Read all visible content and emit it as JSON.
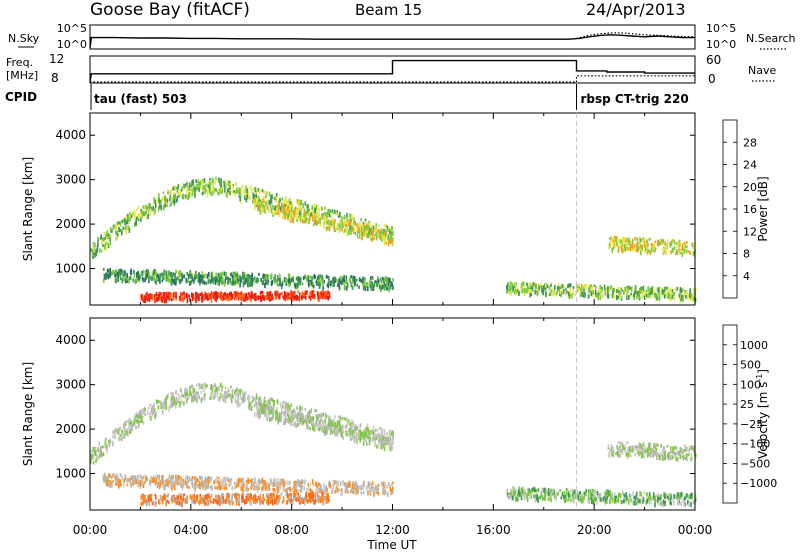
{
  "header": {
    "station": "Goose Bay (fitACF)",
    "beam": "Beam 15",
    "date": "24/Apr/2013"
  },
  "chart_data": [
    {
      "type": "line",
      "name": "noise-panel",
      "left_label": "N.Sky",
      "right_label": "N.Search",
      "left_ticks": [
        "10^5",
        "10^0"
      ],
      "right_ticks": [
        "10^5",
        "10^0"
      ],
      "series": [
        {
          "name": "N.Sky",
          "style": "solid",
          "x": [
            0,
            0.05,
            0.3,
            1,
            2,
            3,
            4,
            5,
            6,
            7,
            8,
            9,
            10,
            11,
            12,
            13,
            14,
            15,
            16,
            17,
            18,
            19,
            19.4,
            19.8,
            20.2,
            20.6,
            21,
            21.5,
            22,
            22.5,
            23,
            23.5,
            24
          ],
          "y": [
            0,
            2.6,
            2.6,
            2.6,
            2.5,
            2.5,
            2.4,
            2.4,
            2.3,
            2.3,
            2.3,
            2.2,
            2.2,
            2.2,
            2.2,
            2.2,
            2.2,
            2.2,
            2.2,
            2.2,
            2.2,
            2.2,
            2.4,
            2.8,
            3.1,
            3.3,
            3.2,
            3.0,
            2.8,
            3.0,
            2.8,
            2.6,
            2.6
          ]
        },
        {
          "name": "N.Search",
          "style": "dotted",
          "x": [
            19.3,
            19.8,
            20.3,
            20.8,
            21.3,
            21.8,
            22.3,
            22.8,
            23.3,
            24
          ],
          "y": [
            2.4,
            3.2,
            3.6,
            3.8,
            3.7,
            3.4,
            3.2,
            3.1,
            2.9,
            2.8
          ]
        }
      ],
      "ylim": [
        0,
        5
      ]
    },
    {
      "type": "line",
      "name": "freq-nave-panel",
      "left_label": "Freq. [MHz]",
      "right_label": "Nave",
      "left_ticks": [
        "12",
        "8"
      ],
      "right_ticks": [
        "60",
        "0"
      ],
      "series": [
        {
          "name": "Freq",
          "style": "solid",
          "x": [
            0,
            0.05,
            12,
            12,
            19.3,
            19.3,
            20.5,
            20.5,
            22.0,
            22.0,
            24
          ],
          "y": [
            6.5,
            8.8,
            8.8,
            12.5,
            12.5,
            9.6,
            9.6,
            9.3,
            9.3,
            9.0,
            9.0
          ]
        },
        {
          "name": "Nave",
          "style": "dotted",
          "x": [
            0,
            0.05,
            19.3,
            19.3,
            24
          ],
          "y": [
            0,
            0,
            0,
            15,
            15
          ]
        }
      ],
      "freq_range": [
        6.5,
        13.5
      ],
      "nave_range": [
        0,
        60
      ]
    },
    {
      "type": "table",
      "name": "cpid-row",
      "label": "CPID",
      "segments": [
        {
          "start": 0,
          "end": 19.3,
          "text": "tau (fast) 503"
        },
        {
          "start": 19.3,
          "end": 24,
          "text": "rbsp CT-trig 220"
        }
      ]
    },
    {
      "type": "heatmap",
      "name": "power-panel",
      "ylabel": "Slant Range [km]",
      "yticks": [
        1000,
        2000,
        3000,
        4000
      ],
      "ylim": [
        180,
        4500
      ],
      "xlim": [
        0,
        24
      ],
      "colorbar": {
        "label": "Power [dB]",
        "ticks": [
          "4",
          "8",
          "12",
          "16",
          "20",
          "24",
          "28"
        ],
        "colors": [
          "#0a28f0",
          "#1e46b4",
          "#2d6e64",
          "#3c9850",
          "#7cc83c",
          "#e6e646",
          "#f0a028",
          "#ff6418",
          "#f02814",
          "#e6140a"
        ]
      },
      "scatter_bands": [
        {
          "t0": 0,
          "t1": 12,
          "shape": "arc",
          "r_start": 1400,
          "r_peak": 2900,
          "t_peak": 5,
          "r_end": 1800,
          "width": 350,
          "level": 4
        },
        {
          "t0": 6.5,
          "t1": 12,
          "shape": "line",
          "r_start": 2500,
          "r_end": 1700,
          "width": 300,
          "level": 5
        },
        {
          "t0": 0.5,
          "t1": 12,
          "shape": "line",
          "r_start": 900,
          "r_end": 700,
          "width": 250,
          "level": 3
        },
        {
          "t0": 2,
          "t1": 9.5,
          "shape": "line",
          "r_start": 400,
          "r_end": 450,
          "width": 150,
          "level": 8
        },
        {
          "t0": 16.5,
          "t1": 24,
          "shape": "line",
          "r_start": 600,
          "r_end": 450,
          "width": 250,
          "level": 4
        },
        {
          "t0": 20.5,
          "t1": 24,
          "shape": "line",
          "r_start": 1600,
          "r_end": 1500,
          "width": 300,
          "level": 5
        }
      ]
    },
    {
      "type": "heatmap",
      "name": "velocity-panel",
      "ylabel": "Slant Range [km]",
      "yticks": [
        1000,
        2000,
        3000,
        4000
      ],
      "ylim": [
        180,
        4500
      ],
      "xlim": [
        0,
        24
      ],
      "colorbar": {
        "label": "Velocity [m s",
        "label_superscript": "-1",
        "label_close": "]",
        "ticks": [
          "1000",
          "500",
          "100",
          "25",
          "−25",
          "−100",
          "−500",
          "−1000"
        ],
        "colors": [
          "#1e46b4",
          "#2d6e64",
          "#3c9850",
          "#7cc83c",
          "#c8c8c4",
          "#b4b4b0",
          "#ff8c1e",
          "#ff6418",
          "#f02814"
        ]
      },
      "xlabel": "Time UT",
      "xticks": [
        "00:00",
        "04:00",
        "08:00",
        "12:00",
        "16:00",
        "20:00",
        "00:00"
      ],
      "scatter_bands": [
        {
          "t0": 0,
          "t1": 12,
          "shape": "arc",
          "r_start": 1400,
          "r_peak": 2900,
          "t_peak": 5,
          "r_end": 1800,
          "width": 350,
          "level": 4
        },
        {
          "t0": 6.5,
          "t1": 12,
          "shape": "line",
          "r_start": 2500,
          "r_end": 1700,
          "width": 300,
          "level": 4
        },
        {
          "t0": 0.5,
          "t1": 12,
          "shape": "line",
          "r_start": 900,
          "r_end": 700,
          "width": 250,
          "level": 5
        },
        {
          "t0": 2,
          "t1": 9.5,
          "shape": "line",
          "r_start": 450,
          "r_end": 500,
          "width": 200,
          "level": 6
        },
        {
          "t0": 16.5,
          "t1": 24,
          "shape": "line",
          "r_start": 600,
          "r_end": 450,
          "width": 250,
          "level": 3
        },
        {
          "t0": 20.5,
          "t1": 24,
          "shape": "line",
          "r_start": 1600,
          "r_end": 1500,
          "width": 300,
          "level": 4
        }
      ]
    }
  ]
}
